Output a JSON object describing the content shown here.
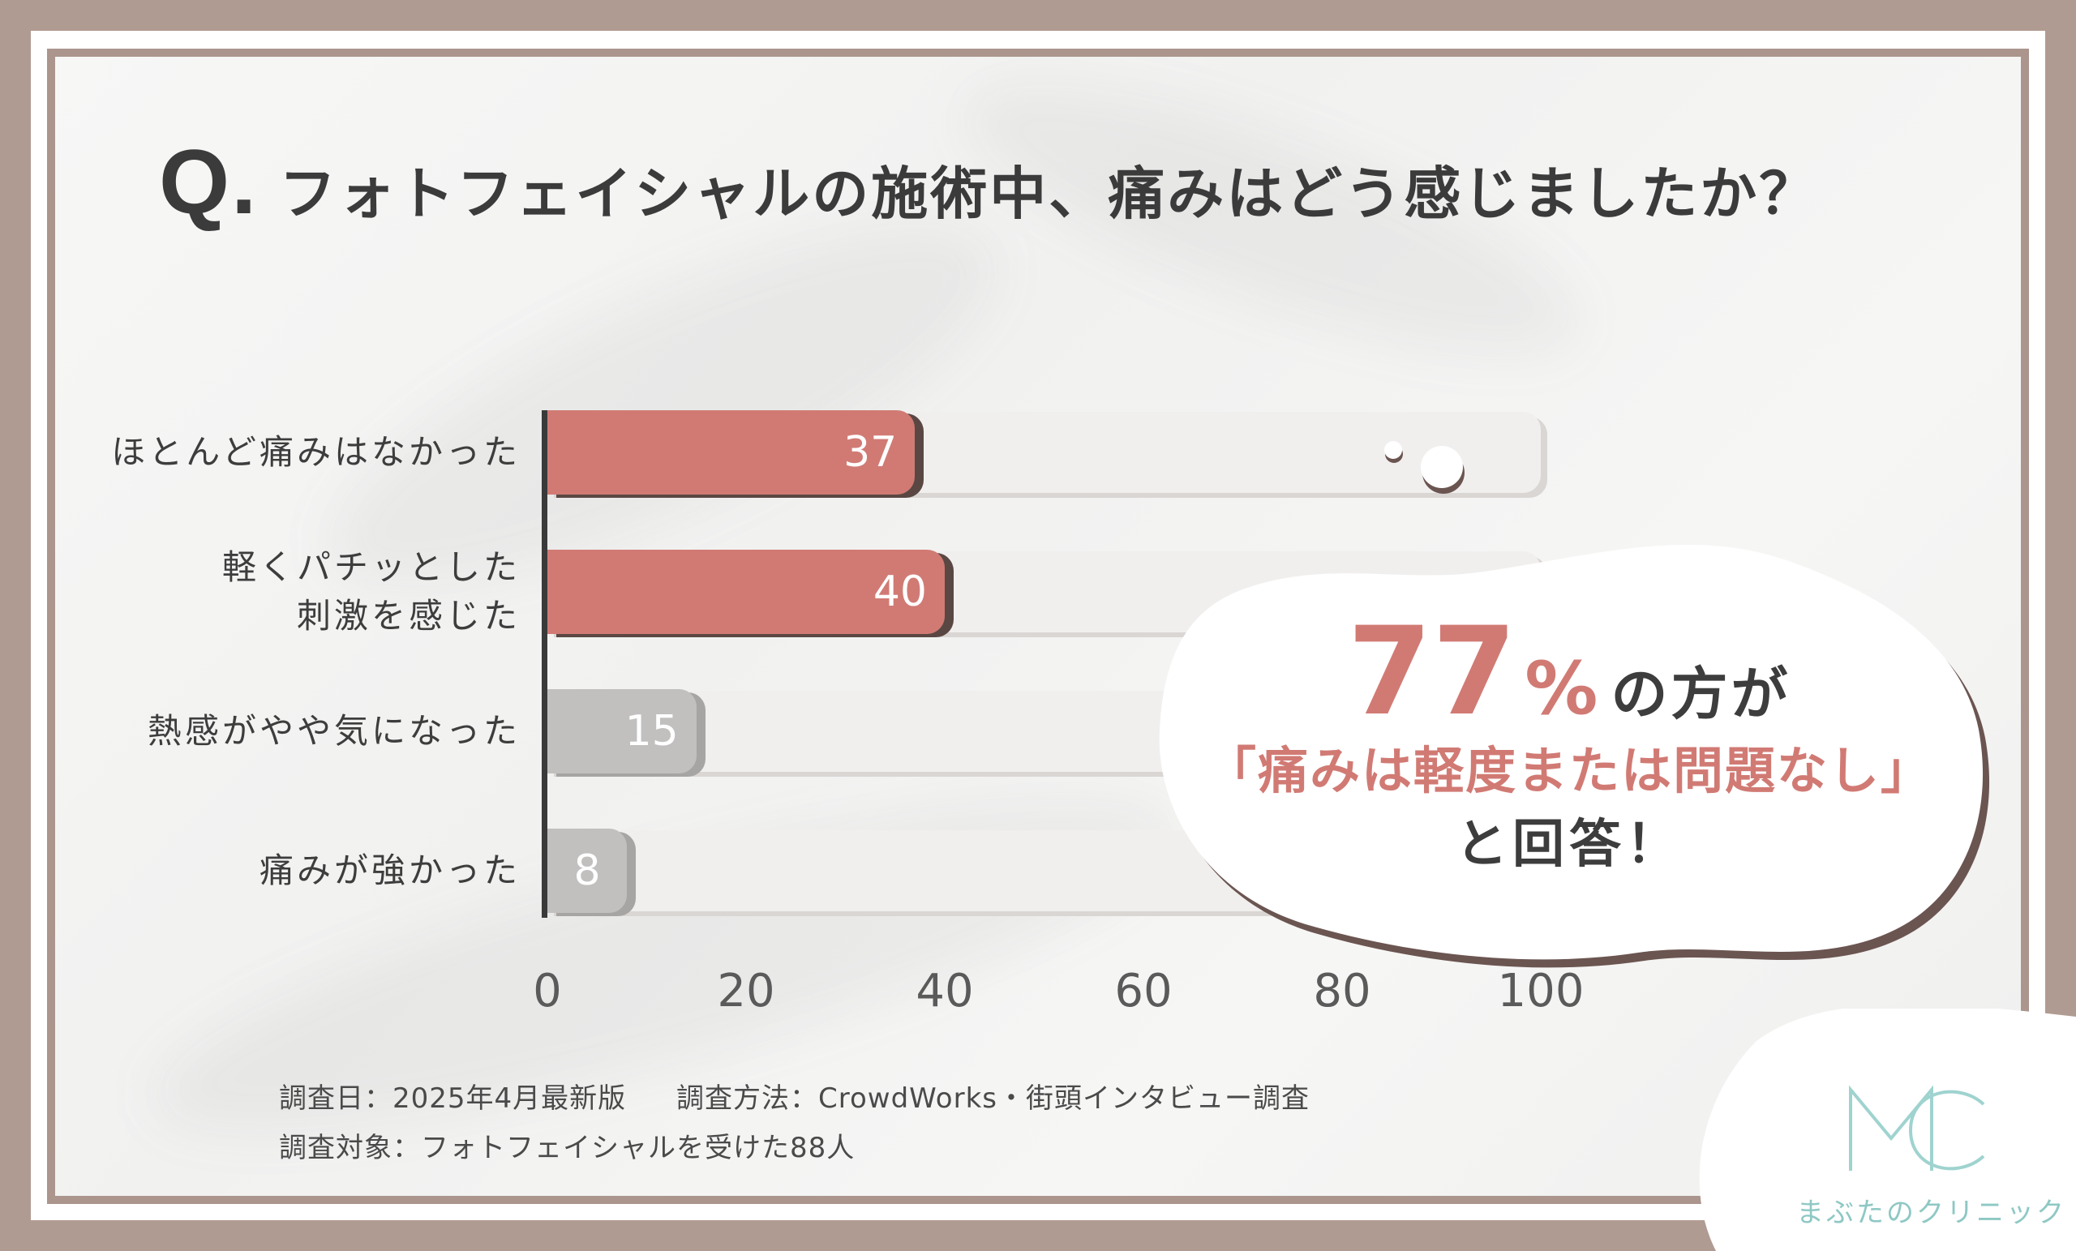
{
  "title": {
    "q": "Q.",
    "text": "フォトフェイシャルの施術中、痛みはどう感じましたか？"
  },
  "chart_data": {
    "type": "bar",
    "orientation": "horizontal",
    "categories": [
      "ほとんど痛みはなかった",
      "軽くパチッとした刺激を感じた",
      "熱感がやや気になった",
      "痛みが強かった"
    ],
    "category_lines": [
      [
        "ほとんど痛みはなかった"
      ],
      [
        "軽くパチッとした",
        "刺激を感じた"
      ],
      [
        "熱感がやや気になった"
      ],
      [
        "痛みが強かった"
      ]
    ],
    "values": [
      37,
      40,
      15,
      8
    ],
    "value_labels": [
      "37",
      "40",
      "15",
      "8"
    ],
    "highlight": [
      true,
      true,
      false,
      false
    ],
    "xlim": [
      0,
      100
    ],
    "xticks": [
      "0",
      "20",
      "40",
      "60",
      "80",
      "100"
    ],
    "colors": {
      "highlight": "#d17a74",
      "muted": "#c2c0bf",
      "track": "#f1efee"
    }
  },
  "callout": {
    "big": "77",
    "pct": "%",
    "after": "の方が",
    "line2": "「痛みは軽度または問題なし」",
    "line3": "と回答！"
  },
  "notes": {
    "line1a": "調査日：2025年4月最新版",
    "line1b": "調査方法：CrowdWorks・街頭インタビュー調査",
    "line2": "調査対象：フォトフェイシャルを受けた88人"
  },
  "logo": {
    "text": "まぶたのクリニック"
  }
}
